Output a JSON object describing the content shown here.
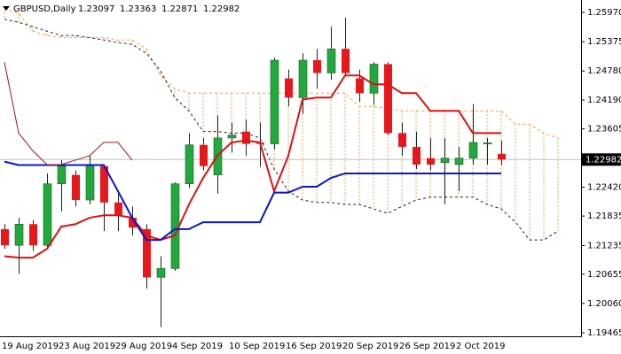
{
  "chart_data": {
    "type": "candlestick",
    "symbol": "GBPUSD,Daily",
    "categories": [
      "19 Aug 2019",
      null,
      null,
      null,
      "23 Aug 2019",
      null,
      null,
      null,
      "29 Aug 2019",
      null,
      null,
      null,
      "4 Sep 2019",
      null,
      null,
      null,
      "10 Sep 2019",
      null,
      null,
      null,
      "16 Sep 2019",
      null,
      null,
      null,
      "20 Sep 2019",
      null,
      null,
      null,
      "26 Sep 2019",
      null,
      null,
      null,
      "2 Oct 2019",
      null,
      null,
      null,
      null,
      null,
      null,
      null
    ],
    "open": [
      1.2157,
      1.2124,
      1.2167,
      1.2124,
      1.2249,
      1.2267,
      1.2216,
      1.2285,
      1.2211,
      1.218,
      1.2157,
      1.2059,
      1.2077,
      1.2249,
      1.2328,
      1.2267,
      1.2342,
      1.2355,
      1.2333,
      1.233,
      1.2463,
      1.2424,
      1.25,
      1.2474,
      1.2523,
      1.2463,
      1.2433,
      1.2492,
      1.2352,
      1.2324,
      1.2301,
      1.2292,
      1.2288,
      1.2301,
      1.233,
      1.23097,
      null,
      null,
      null,
      null
    ],
    "high": [
      1.2167,
      1.218,
      1.2175,
      1.227,
      1.2297,
      1.2276,
      1.2306,
      1.2288,
      1.2229,
      1.2203,
      1.2167,
      1.2102,
      1.2252,
      1.2352,
      1.2342,
      1.2388,
      1.2373,
      1.2379,
      1.2373,
      1.2505,
      1.2481,
      1.2514,
      1.2523,
      1.2568,
      1.2586,
      1.2481,
      1.2496,
      1.2496,
      1.2373,
      1.2355,
      1.2342,
      1.2342,
      1.2324,
      1.2411,
      1.2342,
      1.23363,
      null,
      null,
      null,
      null
    ],
    "low": [
      1.2117,
      1.2066,
      1.2113,
      1.2117,
      1.2193,
      1.2203,
      1.2207,
      1.2153,
      1.2153,
      1.2144,
      1.2036,
      1.1958,
      1.2072,
      1.224,
      1.2276,
      1.2229,
      1.2312,
      1.2306,
      1.2283,
      1.2319,
      1.2406,
      1.2391,
      1.2442,
      1.246,
      1.2469,
      1.2415,
      1.2409,
      1.2348,
      1.2306,
      1.2279,
      1.2276,
      1.2207,
      1.2234,
      1.2288,
      1.2288,
      1.22871,
      null,
      null,
      null,
      null
    ],
    "close": [
      1.2124,
      1.2167,
      1.2124,
      1.2249,
      1.2285,
      1.2216,
      1.2288,
      1.2211,
      1.2185,
      1.216,
      1.2059,
      1.2077,
      1.2249,
      1.2328,
      1.2285,
      1.2342,
      1.2348,
      1.233,
      1.233,
      1.25,
      1.2424,
      1.25,
      1.2474,
      1.2523,
      1.2474,
      1.2433,
      1.2492,
      1.2352,
      1.2324,
      1.2288,
      1.2288,
      1.2301,
      1.2301,
      1.2333,
      1.2332,
      1.22982,
      null,
      null,
      null,
      null
    ],
    "bull_color": "#22a83c",
    "bear_color": "#e8171b",
    "wick_color": "#222222",
    "cloud": {
      "color": "#f0a040",
      "edge_color": "#222222",
      "span_a": [
        1.2604,
        1.2595,
        1.2559,
        1.255,
        1.2546,
        1.2546,
        1.2546,
        1.2546,
        1.2541,
        1.2541,
        1.2523,
        1.2469,
        1.2442,
        1.2433,
        1.2433,
        1.2433,
        1.2433,
        1.2433,
        1.2433,
        1.2433,
        1.2433,
        1.2433,
        1.2433,
        1.2433,
        1.2433,
        1.2406,
        1.2406,
        1.2402,
        1.2397,
        1.2397,
        1.2397,
        1.2397,
        1.2397,
        1.2397,
        1.2397,
        1.2397,
        1.237,
        1.237,
        1.2352,
        1.2342
      ],
      "span_b": [
        1.2583,
        1.2577,
        1.2568,
        1.2559,
        1.255,
        1.255,
        1.2546,
        1.2541,
        1.2536,
        1.2532,
        1.2514,
        1.2478,
        1.2424,
        1.2397,
        1.2355,
        1.2355,
        1.2352,
        1.2352,
        1.2342,
        1.2279,
        1.2234,
        1.2216,
        1.2211,
        1.2211,
        1.2207,
        1.2207,
        1.2198,
        1.2189,
        1.2203,
        1.2216,
        1.2222,
        1.2222,
        1.2222,
        1.2222,
        1.2207,
        1.2198,
        1.2171,
        1.2135,
        1.2135,
        1.2153
      ]
    },
    "overlays": [
      {
        "color": "#e01010",
        "width": 2,
        "values": [
          1.2102,
          1.2099,
          1.2099,
          1.2117,
          1.2162,
          1.2167,
          1.218,
          1.2185,
          1.2185,
          1.218,
          1.2144,
          1.2135,
          1.2144,
          1.2207,
          1.2261,
          1.2306,
          1.2333,
          1.2337,
          1.2333,
          1.2234,
          1.2306,
          1.242,
          1.2424,
          1.2424,
          1.2469,
          1.2469,
          1.2451,
          1.2451,
          1.2433,
          1.2433,
          1.2397,
          1.2397,
          1.2397,
          1.2352,
          1.2352,
          1.2352,
          null,
          null,
          null,
          null
        ]
      },
      {
        "color": "#0a14d8",
        "width": 2,
        "values": [
          1.2294,
          1.2287,
          1.2287,
          1.2287,
          1.2287,
          1.2287,
          1.2287,
          1.2287,
          1.2234,
          1.218,
          1.2135,
          1.2135,
          1.2157,
          1.2157,
          1.2171,
          1.2171,
          1.2171,
          1.2171,
          1.2171,
          1.2231,
          1.2231,
          1.2243,
          1.2243,
          1.2261,
          1.227,
          1.227,
          1.227,
          1.227,
          1.227,
          1.227,
          1.227,
          1.227,
          1.227,
          1.227,
          1.227,
          1.227,
          null,
          null,
          null,
          null
        ]
      },
      {
        "color": "#a01818",
        "width": 1,
        "values": [
          1.2496,
          1.2352,
          1.2316,
          1.2288,
          1.2288,
          1.2297,
          1.2306,
          1.2333,
          1.2333,
          1.2297,
          null,
          null,
          null,
          null,
          null,
          null,
          null,
          null,
          null,
          null,
          null,
          null,
          null,
          null,
          null,
          null,
          null,
          null,
          null,
          null,
          null,
          null,
          null,
          null,
          null,
          null,
          null,
          null,
          null,
          null
        ]
      }
    ],
    "last_price": 1.22982,
    "ylim": [
      1.19393,
      1.26186
    ],
    "yticks": [
      {
        "value": 1.2597,
        "label": "1.25970"
      },
      1.25375,
      {
        "value": 1.2478,
        "label": "1.24780"
      },
      {
        "value": 1.2419,
        "label": "1.24190"
      },
      1.23605,
      {
        "value": 1.2242,
        "label": "1.22420"
      },
      1.21835,
      1.21235,
      1.20655,
      {
        "value": 1.2006,
        "label": "1.20060"
      },
      1.19465
    ]
  }
}
